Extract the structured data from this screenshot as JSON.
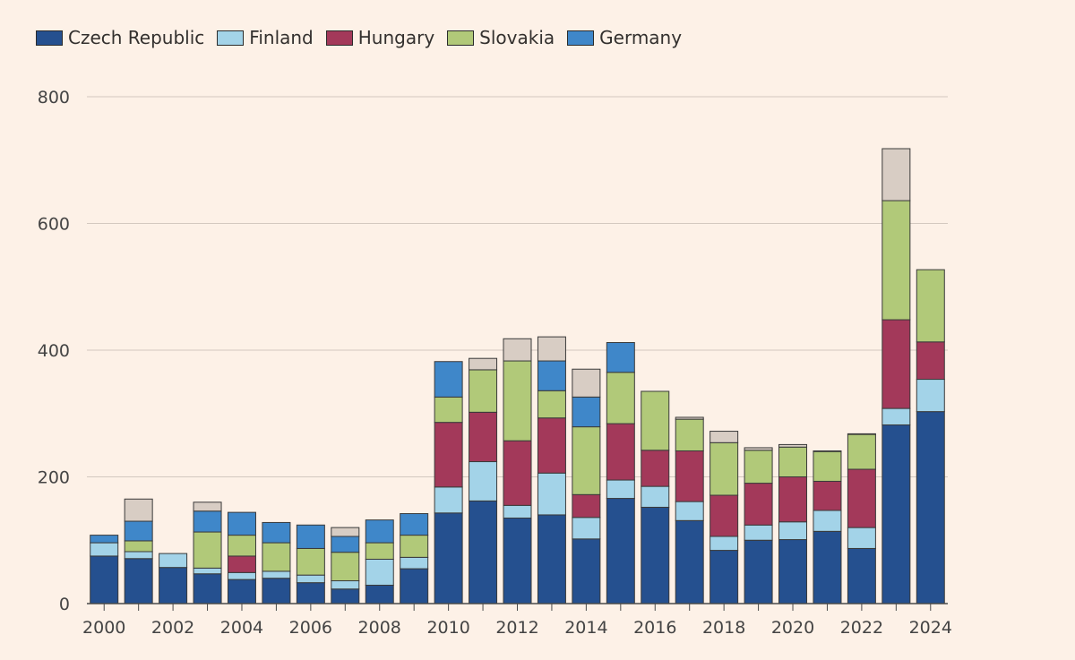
{
  "chart_data": {
    "type": "bar",
    "stacked": true,
    "title": "",
    "xlabel": "",
    "ylabel": "",
    "ylim": [
      0,
      800
    ],
    "yticks": [
      0,
      200,
      400,
      600,
      800
    ],
    "grid": true,
    "legend_position": "top-left",
    "categories": [
      2000,
      2001,
      2002,
      2003,
      2004,
      2005,
      2006,
      2007,
      2008,
      2009,
      2010,
      2011,
      2012,
      2013,
      2014,
      2015,
      2016,
      2017,
      2018,
      2019,
      2020,
      2021,
      2022,
      2023,
      2024
    ],
    "xtick_labels": [
      "2000",
      "2002",
      "2004",
      "2006",
      "2008",
      "2010",
      "2012",
      "2014",
      "2016",
      "2018",
      "2020",
      "2022",
      "2024"
    ],
    "series": [
      {
        "name": "Czech Republic",
        "color": "#25508f",
        "values": [
          75,
          71,
          57,
          47,
          38,
          40,
          33,
          23,
          29,
          55,
          143,
          162,
          135,
          140,
          102,
          166,
          152,
          131,
          84,
          100,
          101,
          114,
          87,
          282,
          303
        ]
      },
      {
        "name": "Finland",
        "color": "#a3d3e8",
        "values": [
          21,
          11,
          22,
          9,
          11,
          11,
          12,
          13,
          41,
          18,
          41,
          62,
          20,
          66,
          34,
          29,
          33,
          30,
          22,
          24,
          28,
          33,
          33,
          26,
          51
        ]
      },
      {
        "name": "Hungary",
        "color": "#a3395a",
        "values": [
          0,
          0,
          0,
          0,
          26,
          0,
          0,
          0,
          0,
          0,
          102,
          78,
          102,
          87,
          36,
          89,
          57,
          80,
          65,
          66,
          71,
          46,
          92,
          140,
          59
        ]
      },
      {
        "name": "Slovakia",
        "color": "#b1c979",
        "values": [
          0,
          17,
          0,
          57,
          33,
          45,
          42,
          45,
          26,
          35,
          40,
          67,
          126,
          43,
          107,
          81,
          93,
          50,
          83,
          52,
          47,
          47,
          55,
          188,
          114
        ]
      },
      {
        "name": "Germany",
        "color": "#3f87c9",
        "values": [
          12,
          31,
          0,
          33,
          36,
          32,
          37,
          25,
          36,
          34,
          56,
          0,
          0,
          47,
          47,
          47,
          0,
          0,
          0,
          0,
          0,
          0,
          0,
          0,
          0
        ]
      },
      {
        "name": "",
        "color": "#d8cdc4",
        "values": [
          0,
          35,
          0,
          14,
          0,
          0,
          0,
          14,
          0,
          0,
          0,
          18,
          35,
          38,
          44,
          0,
          0,
          3,
          18,
          4,
          4,
          1,
          1,
          82,
          0
        ]
      }
    ]
  }
}
